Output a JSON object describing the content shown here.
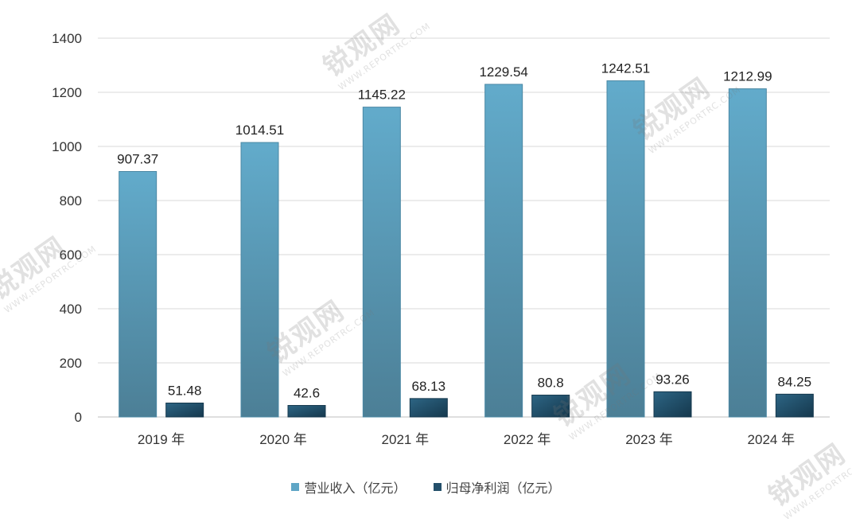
{
  "chart_data": {
    "type": "bar",
    "categories": [
      "2019 年",
      "2020 年",
      "2021 年",
      "2022 年",
      "2023 年",
      "2024 年"
    ],
    "series": [
      {
        "name": "营业收入（亿元）",
        "values": [
          907.37,
          1014.51,
          1145.22,
          1229.54,
          1242.51,
          1212.99
        ],
        "labels": [
          "907.37",
          "1014.51",
          "1145.22",
          "1229.54",
          "1242.51",
          "1212.99"
        ],
        "color": "#5fa6c6"
      },
      {
        "name": "归母净利润（亿元）",
        "values": [
          51.48,
          42.6,
          68.13,
          80.8,
          93.26,
          84.25
        ],
        "labels": [
          "51.48",
          "42.6",
          "68.13",
          "80.8",
          "93.26",
          "84.25"
        ],
        "color": "#24506b"
      }
    ],
    "ylim": [
      0,
      1400
    ],
    "yticks": [
      0,
      200,
      400,
      600,
      800,
      1000,
      1200,
      1400
    ],
    "ytick_labels": [
      "0",
      "200",
      "400",
      "600",
      "800",
      "1000",
      "1200",
      "1400"
    ],
    "grid": true,
    "legend_position": "bottom",
    "title": "",
    "xlabel": "",
    "ylabel": ""
  },
  "watermark": {
    "text": "锐观网",
    "url": "WWW.REPORTRC.COM"
  }
}
